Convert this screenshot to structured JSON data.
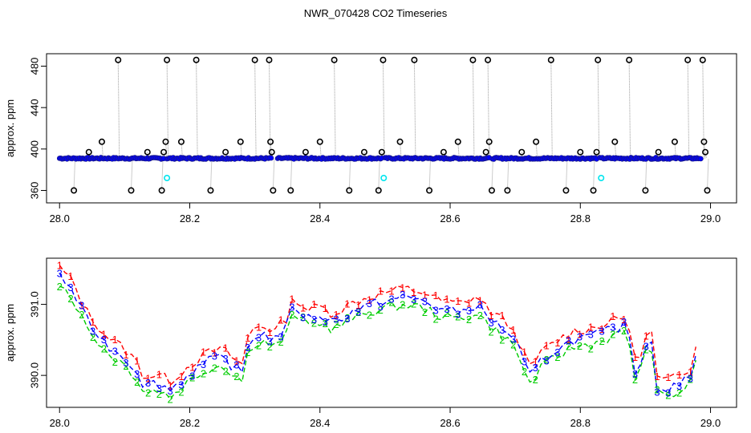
{
  "page": {
    "title": "NWR_070428  CO2 Timeseries"
  },
  "chart_data": [
    {
      "type": "scatter",
      "title": "NWR_070428  CO2 Timeseries",
      "xlabel": "",
      "ylabel": "approx. ppm",
      "xlim": [
        27.98,
        29.04
      ],
      "ylim": [
        348,
        492
      ],
      "xticks": [
        28.0,
        28.2,
        28.4,
        28.6,
        28.8,
        29.0
      ],
      "xtick_labels": [
        "28.0",
        "28.2",
        "28.4",
        "28.6",
        "28.8",
        "29.0"
      ],
      "yticks": [
        360,
        400,
        440,
        480
      ],
      "ytick_labels": [
        "360",
        "400",
        "440",
        "480"
      ],
      "baseline_ppm": 391,
      "segments": [
        [
          28.0,
          28.16
        ],
        [
          28.165,
          28.325
        ],
        [
          28.335,
          28.495
        ],
        [
          28.5,
          28.66
        ],
        [
          28.665,
          28.825
        ],
        [
          28.83,
          28.985
        ]
      ],
      "outliers": [
        {
          "x": 28.022,
          "y": 360
        },
        {
          "x": 28.045,
          "y": 397
        },
        {
          "x": 28.065,
          "y": 407
        },
        {
          "x": 28.09,
          "y": 486
        },
        {
          "x": 28.11,
          "y": 360
        },
        {
          "x": 28.135,
          "y": 397
        },
        {
          "x": 28.157,
          "y": 360
        },
        {
          "x": 28.16,
          "y": 397
        },
        {
          "x": 28.163,
          "y": 407
        },
        {
          "x": 28.165,
          "y": 486
        },
        {
          "x": 28.187,
          "y": 407
        },
        {
          "x": 28.21,
          "y": 486
        },
        {
          "x": 28.232,
          "y": 360
        },
        {
          "x": 28.255,
          "y": 397
        },
        {
          "x": 28.278,
          "y": 407
        },
        {
          "x": 28.3,
          "y": 486
        },
        {
          "x": 28.322,
          "y": 486
        },
        {
          "x": 28.324,
          "y": 407
        },
        {
          "x": 28.326,
          "y": 397
        },
        {
          "x": 28.328,
          "y": 360
        },
        {
          "x": 28.355,
          "y": 360
        },
        {
          "x": 28.378,
          "y": 397
        },
        {
          "x": 28.4,
          "y": 407
        },
        {
          "x": 28.422,
          "y": 486
        },
        {
          "x": 28.445,
          "y": 360
        },
        {
          "x": 28.468,
          "y": 397
        },
        {
          "x": 28.49,
          "y": 360
        },
        {
          "x": 28.495,
          "y": 397
        },
        {
          "x": 28.497,
          "y": 486
        },
        {
          "x": 28.523,
          "y": 407
        },
        {
          "x": 28.545,
          "y": 486
        },
        {
          "x": 28.568,
          "y": 360
        },
        {
          "x": 28.59,
          "y": 397
        },
        {
          "x": 28.612,
          "y": 407
        },
        {
          "x": 28.635,
          "y": 486
        },
        {
          "x": 28.655,
          "y": 397
        },
        {
          "x": 28.658,
          "y": 486
        },
        {
          "x": 28.66,
          "y": 407
        },
        {
          "x": 28.664,
          "y": 360
        },
        {
          "x": 28.688,
          "y": 360
        },
        {
          "x": 28.71,
          "y": 397
        },
        {
          "x": 28.732,
          "y": 407
        },
        {
          "x": 28.755,
          "y": 486
        },
        {
          "x": 28.778,
          "y": 360
        },
        {
          "x": 28.8,
          "y": 397
        },
        {
          "x": 28.82,
          "y": 360
        },
        {
          "x": 28.825,
          "y": 397
        },
        {
          "x": 28.827,
          "y": 486
        },
        {
          "x": 28.853,
          "y": 407
        },
        {
          "x": 28.875,
          "y": 486
        },
        {
          "x": 28.9,
          "y": 360
        },
        {
          "x": 28.92,
          "y": 397
        },
        {
          "x": 28.945,
          "y": 407
        },
        {
          "x": 28.965,
          "y": 486
        },
        {
          "x": 28.988,
          "y": 486
        },
        {
          "x": 28.99,
          "y": 407
        },
        {
          "x": 28.992,
          "y": 397
        },
        {
          "x": 28.995,
          "y": 360
        }
      ],
      "cyan_points": [
        {
          "x": 28.165,
          "y": 372
        },
        {
          "x": 28.498,
          "y": 372
        },
        {
          "x": 28.832,
          "y": 372
        }
      ],
      "colors": {
        "points": "#0000ff",
        "outline": "#000000",
        "cyan": "#00e5ee",
        "lines": "#999999"
      }
    },
    {
      "type": "line",
      "title": "",
      "xlabel": "",
      "ylabel": "approx. ppm",
      "xlim": [
        27.98,
        29.04
      ],
      "ylim": [
        389.55,
        391.65
      ],
      "xticks": [
        28.0,
        28.2,
        28.4,
        28.6,
        28.8,
        29.0
      ],
      "xtick_labels": [
        "28.0",
        "28.2",
        "28.4",
        "28.6",
        "28.8",
        "29.0"
      ],
      "yticks": [
        390.0,
        391.0
      ],
      "ytick_labels": [
        "390.0",
        "391.0"
      ],
      "series": [
        {
          "name": "1",
          "symbol": "1",
          "color": "#ff0000",
          "dy": 0.12
        },
        {
          "name": "2",
          "symbol": "2",
          "color": "#00cc00",
          "dy": -0.1
        },
        {
          "name": "3",
          "symbol": "3",
          "color": "#0000ff",
          "dy": 0.0
        }
      ],
      "base_curve": {
        "x": [
          28.0,
          28.02,
          28.04,
          28.07,
          28.1,
          28.12,
          28.13,
          28.15,
          28.17,
          28.19,
          28.21,
          28.23,
          28.25,
          28.27,
          28.285,
          28.29,
          28.31,
          28.33,
          28.35,
          28.36,
          28.38,
          28.4,
          28.42,
          28.45,
          28.48,
          28.5,
          28.53,
          28.56,
          28.58,
          28.6,
          28.62,
          28.64,
          28.66,
          28.69,
          28.71,
          28.72,
          28.74,
          28.76,
          28.79,
          28.82,
          28.85,
          28.87,
          28.88,
          28.885,
          28.9,
          28.91,
          28.915,
          28.93,
          28.95,
          28.97,
          28.985
        ],
        "y": [
          391.4,
          391.2,
          390.8,
          390.45,
          390.25,
          390.05,
          389.85,
          389.9,
          389.8,
          389.95,
          390.1,
          390.2,
          390.25,
          390.1,
          390.0,
          390.5,
          390.6,
          390.5,
          390.7,
          391.0,
          390.8,
          390.85,
          390.75,
          390.9,
          391.0,
          391.05,
          391.1,
          391.05,
          390.95,
          390.9,
          390.9,
          391.0,
          390.8,
          390.6,
          390.3,
          389.95,
          390.2,
          390.35,
          390.5,
          390.55,
          390.65,
          390.7,
          390.4,
          390.0,
          390.4,
          390.5,
          389.85,
          389.8,
          389.85,
          390.0,
          390.7
        ]
      }
    }
  ]
}
